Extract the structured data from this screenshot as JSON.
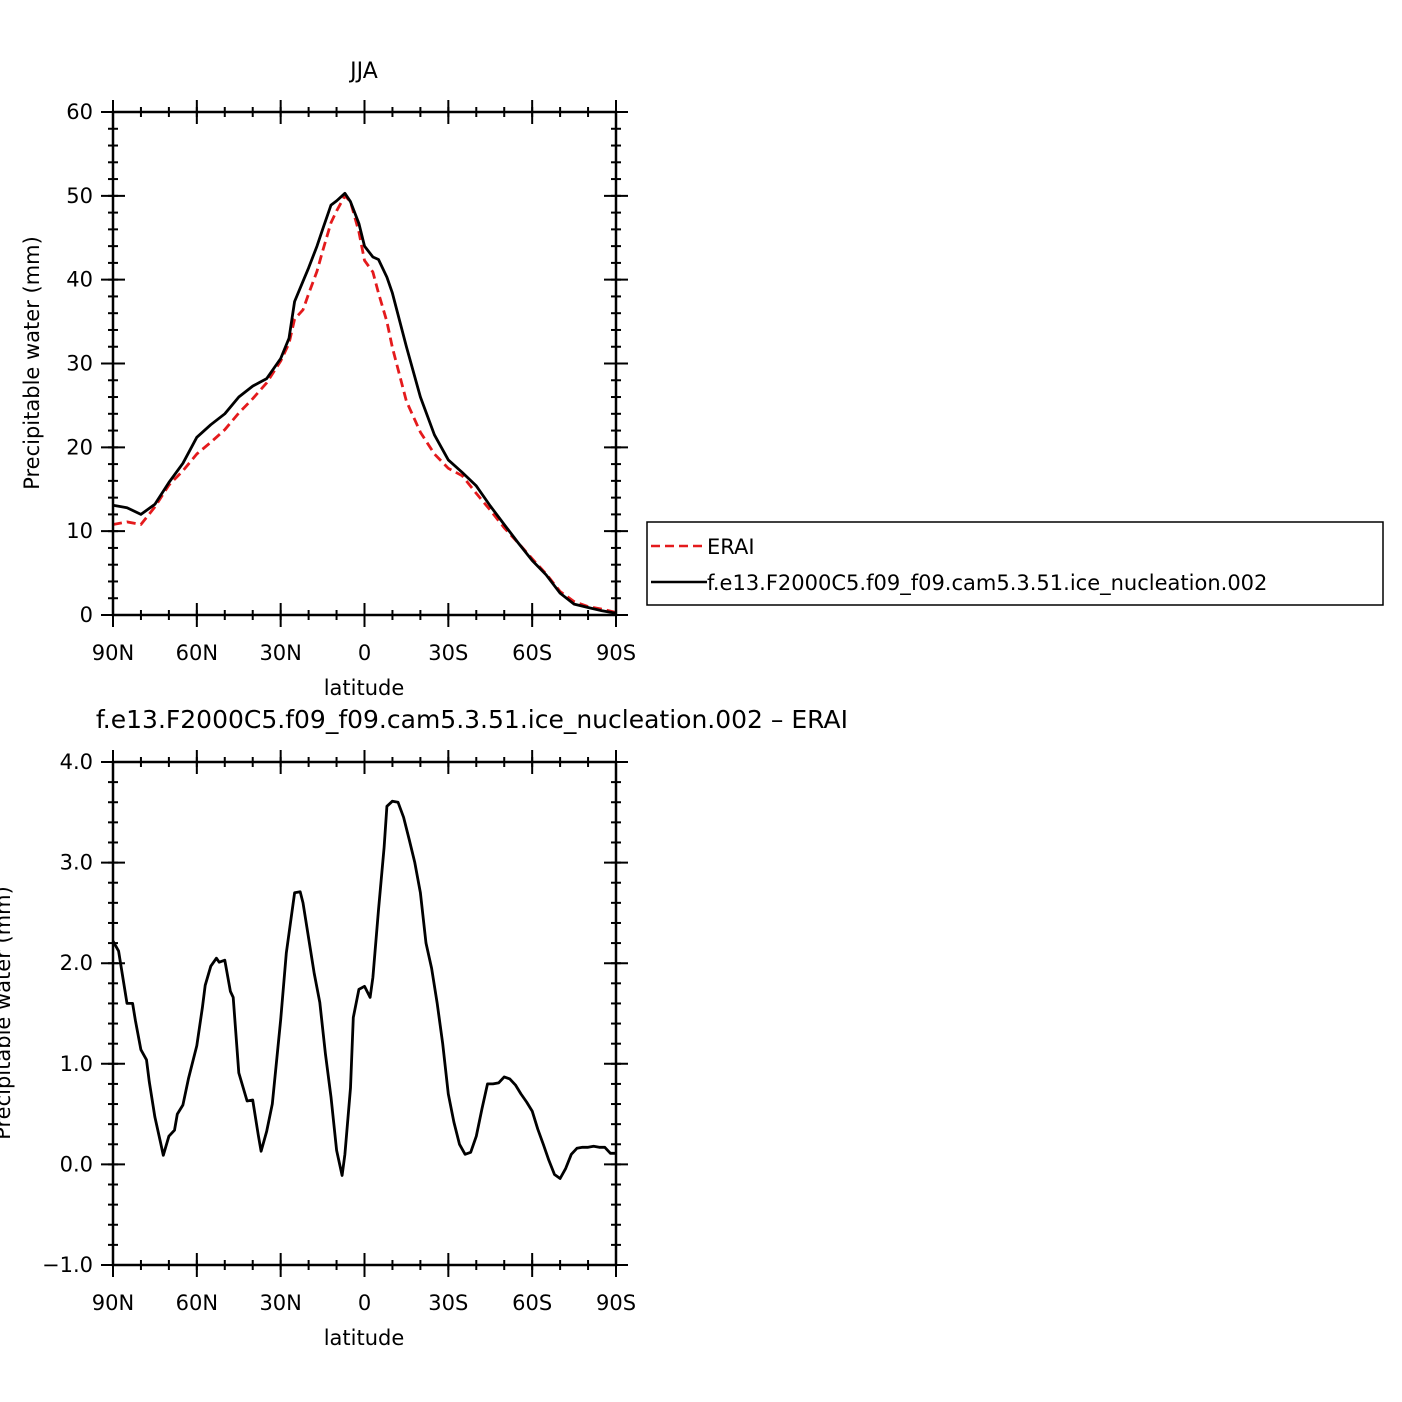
{
  "chart_data": [
    {
      "type": "line",
      "title": "JJA",
      "xlabel": "latitude",
      "ylabel": "Precipitable water (mm)",
      "xlim": [
        90,
        -90
      ],
      "ylim": [
        0,
        60
      ],
      "x_ticks": [
        {
          "value": 90,
          "label": "90N"
        },
        {
          "value": 60,
          "label": "60N"
        },
        {
          "value": 30,
          "label": "30N"
        },
        {
          "value": 0,
          "label": "0"
        },
        {
          "value": -30,
          "label": "30S"
        },
        {
          "value": -60,
          "label": "60S"
        },
        {
          "value": -90,
          "label": "90S"
        }
      ],
      "y_ticks": [
        {
          "value": 0,
          "label": "0"
        },
        {
          "value": 10,
          "label": "10"
        },
        {
          "value": 20,
          "label": "20"
        },
        {
          "value": 30,
          "label": "30"
        },
        {
          "value": 40,
          "label": "40"
        },
        {
          "value": 50,
          "label": "50"
        },
        {
          "value": 60,
          "label": "60"
        }
      ],
      "grid": false,
      "legend_placement": "right",
      "series": [
        {
          "name": "ERAI",
          "color": "#e41a1c",
          "dash": "dashed",
          "x": [
            90,
            85,
            80,
            75,
            70,
            65,
            60,
            55,
            50,
            45,
            40,
            35,
            30,
            27,
            25,
            22,
            20,
            17,
            15,
            12,
            10,
            7,
            5,
            2,
            0,
            -3,
            -5,
            -8,
            -10,
            -15,
            -20,
            -25,
            -30,
            -35,
            -40,
            -45,
            -50,
            -55,
            -60,
            -65,
            -70,
            -75,
            -80,
            -85,
            -90
          ],
          "values": [
            10.8,
            11.1,
            10.8,
            12.9,
            15.5,
            17.2,
            19.2,
            20.6,
            22.1,
            24.1,
            25.8,
            27.7,
            30.3,
            32.4,
            35.3,
            36.4,
            38.3,
            41.0,
            43.4,
            46.8,
            48.2,
            50.0,
            49.3,
            45.7,
            42.3,
            40.9,
            38.4,
            35.0,
            31.9,
            25.5,
            21.8,
            19.2,
            17.5,
            16.6,
            14.5,
            12.5,
            10.4,
            8.6,
            6.7,
            4.9,
            2.8,
            1.6,
            1.0,
            0.7,
            0.3
          ]
        },
        {
          "name": "f.e13.F2000C5.f09_f09.cam5.3.51.ice_nucleation.002",
          "color": "#000000",
          "dash": "solid",
          "x": [
            90,
            85,
            80,
            75,
            70,
            65,
            60,
            55,
            50,
            45,
            40,
            35,
            30,
            27,
            25,
            22,
            20,
            17,
            15,
            12,
            10,
            7,
            5,
            2,
            0,
            -3,
            -5,
            -8,
            -10,
            -15,
            -20,
            -25,
            -30,
            -35,
            -40,
            -45,
            -50,
            -55,
            -60,
            -65,
            -70,
            -75,
            -80,
            -85,
            -90
          ],
          "values": [
            13.1,
            12.8,
            12.0,
            13.2,
            15.8,
            18.1,
            21.2,
            22.7,
            24.0,
            26.0,
            27.3,
            28.2,
            30.6,
            33.0,
            37.4,
            39.8,
            41.4,
            44.0,
            46.0,
            48.9,
            49.4,
            50.3,
            49.3,
            46.7,
            44.0,
            42.7,
            42.4,
            40.3,
            38.4,
            32.0,
            26.0,
            21.5,
            18.5,
            17.0,
            15.4,
            13.0,
            10.8,
            8.6,
            6.5,
            4.8,
            2.6,
            1.3,
            0.9,
            0.5,
            0.2
          ]
        }
      ]
    },
    {
      "type": "line",
      "title": "f.e13.F2000C5.f09_f09.cam5.3.51.ice_nucleation.002 – ERAI",
      "xlabel": "latitude",
      "ylabel": "Precipitable water (mm)",
      "xlim": [
        90,
        -90
      ],
      "ylim": [
        -1.0,
        4.0
      ],
      "x_ticks": [
        {
          "value": 90,
          "label": "90N"
        },
        {
          "value": 60,
          "label": "60N"
        },
        {
          "value": 30,
          "label": "30N"
        },
        {
          "value": 0,
          "label": "0"
        },
        {
          "value": -30,
          "label": "30S"
        },
        {
          "value": -60,
          "label": "60S"
        },
        {
          "value": -90,
          "label": "90S"
        }
      ],
      "y_ticks": [
        {
          "value": -1.0,
          "label": "−1.0"
        },
        {
          "value": 0.0,
          "label": "0.0"
        },
        {
          "value": 1.0,
          "label": "1.0"
        },
        {
          "value": 2.0,
          "label": "2.0"
        },
        {
          "value": 3.0,
          "label": "3.0"
        },
        {
          "value": 4.0,
          "label": "4.0"
        }
      ],
      "grid": false,
      "series": [
        {
          "color": "#000000",
          "dash": "solid",
          "x": [
            90,
            88,
            85,
            83,
            82,
            80,
            78,
            77,
            75,
            73,
            72,
            70,
            68,
            67,
            65,
            63,
            60,
            58,
            57,
            55,
            53,
            52,
            50,
            48,
            47,
            45,
            42,
            40,
            38,
            37,
            35,
            33,
            31,
            30,
            28,
            25,
            23,
            22,
            20,
            18,
            16,
            14,
            12,
            10,
            8,
            7,
            5,
            4,
            2,
            0,
            -2,
            -3,
            -5,
            -7,
            -8,
            -10,
            -12,
            -14,
            -16,
            -18,
            -20,
            -22,
            -24,
            -26,
            -28,
            -30,
            -32,
            -34,
            -36,
            -38,
            -40,
            -42,
            -44,
            -46,
            -48,
            -50,
            -52,
            -54,
            -56,
            -58,
            -60,
            -62,
            -64,
            -66,
            -68,
            -70,
            -72,
            -74,
            -76,
            -78,
            -80,
            -82,
            -84,
            -86,
            -88,
            -90
          ],
          "values": [
            2.22,
            2.12,
            1.6,
            1.6,
            1.43,
            1.14,
            1.04,
            0.82,
            0.47,
            0.22,
            0.09,
            0.28,
            0.34,
            0.5,
            0.59,
            0.85,
            1.18,
            1.56,
            1.78,
            1.97,
            2.05,
            2.01,
            2.03,
            1.72,
            1.66,
            0.91,
            0.63,
            0.64,
            0.29,
            0.13,
            0.33,
            0.6,
            1.16,
            1.44,
            2.1,
            2.7,
            2.71,
            2.6,
            2.25,
            1.9,
            1.61,
            1.1,
            0.67,
            0.14,
            -0.11,
            0.1,
            0.76,
            1.46,
            1.74,
            1.77,
            1.66,
            1.86,
            2.53,
            3.15,
            3.56,
            3.61,
            3.6,
            3.45,
            3.23,
            3.0,
            2.7,
            2.2,
            1.95,
            1.6,
            1.2,
            0.7,
            0.42,
            0.2,
            0.1,
            0.12,
            0.28,
            0.55,
            0.8,
            0.8,
            0.81,
            0.87,
            0.85,
            0.79,
            0.7,
            0.62,
            0.53,
            0.35,
            0.2,
            0.04,
            -0.1,
            -0.14,
            -0.04,
            0.1,
            0.16,
            0.17,
            0.17,
            0.18,
            0.17,
            0.17,
            0.11,
            0.11
          ]
        }
      ]
    }
  ]
}
